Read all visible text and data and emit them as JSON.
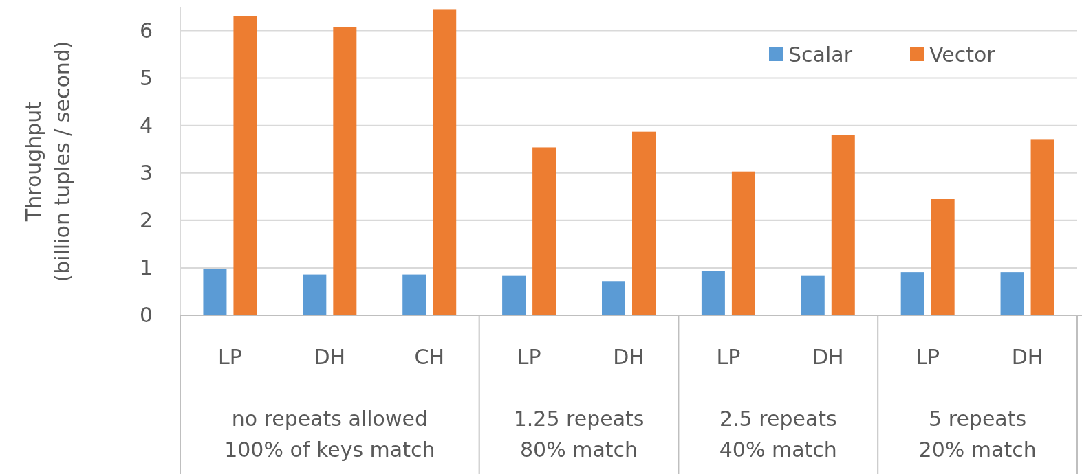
{
  "chart_data": {
    "type": "bar",
    "ylabel": "Throughput\n(billion tuples / second)",
    "categories": [
      "LP",
      "DH",
      "CH",
      "LP",
      "DH",
      "LP",
      "DH",
      "LP",
      "DH"
    ],
    "series": [
      {
        "name": "Scalar",
        "color": "#5b9bd5",
        "values": [
          0.97,
          0.86,
          0.86,
          0.83,
          0.72,
          0.93,
          0.83,
          0.91,
          0.91
        ]
      },
      {
        "name": "Vector",
        "color": "#ed7d31",
        "values": [
          6.3,
          6.07,
          6.45,
          3.54,
          3.87,
          3.03,
          3.8,
          2.45,
          3.7
        ]
      }
    ],
    "ylim": [
      0,
      6.5
    ],
    "yticks": [
      0,
      1,
      2,
      3,
      4,
      5,
      6
    ],
    "grid": "y",
    "legend": "top right",
    "annotations": [
      "no repeats allowed\n100% of keys match",
      "1.25 repeats\n80% match",
      "2.5 repeats\n40% match",
      "5 repeats\n20% match"
    ]
  }
}
